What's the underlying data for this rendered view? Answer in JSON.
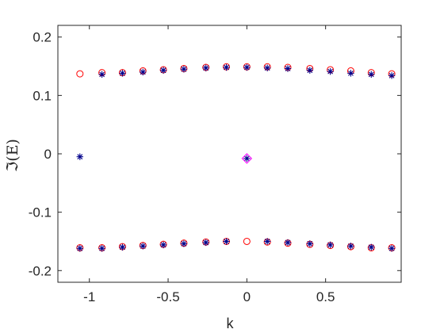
{
  "chart_data": {
    "type": "scatter",
    "xlabel": "k",
    "ylabel": "ℑ(E)",
    "xlim": [
      -1.2,
      0.98
    ],
    "ylim": [
      -0.22,
      0.22
    ],
    "x_ticks": [
      -1,
      -0.5,
      0,
      0.5
    ],
    "x_tick_labels": [
      "-1",
      "-0.5",
      "0",
      "0.5"
    ],
    "y_ticks": [
      -0.2,
      -0.1,
      0,
      0.1,
      0.2
    ],
    "y_tick_labels": [
      "-0.2",
      "-0.1",
      "0",
      "0.1",
      "0.2"
    ],
    "grid": false,
    "box": true,
    "series": [
      {
        "marker": "circle",
        "color": "#ff0000",
        "points": [
          [
            -1.06,
            0.137
          ],
          [
            -0.92,
            0.139
          ],
          [
            -0.79,
            0.139
          ],
          [
            -0.66,
            0.142
          ],
          [
            -0.53,
            0.144
          ],
          [
            -0.4,
            0.146
          ],
          [
            -0.26,
            0.148
          ],
          [
            -0.13,
            0.149
          ],
          [
            0.0,
            0.149
          ],
          [
            0.13,
            0.149
          ],
          [
            0.26,
            0.148
          ],
          [
            0.4,
            0.146
          ],
          [
            0.53,
            0.144
          ],
          [
            0.66,
            0.142
          ],
          [
            0.79,
            0.139
          ],
          [
            0.92,
            0.137
          ],
          [
            -1.06,
            -0.161
          ],
          [
            -0.92,
            -0.161
          ],
          [
            -0.79,
            -0.159
          ],
          [
            -0.66,
            -0.157
          ],
          [
            -0.53,
            -0.155
          ],
          [
            -0.4,
            -0.153
          ],
          [
            -0.26,
            -0.151
          ],
          [
            -0.13,
            -0.15
          ],
          [
            0.0,
            -0.15
          ],
          [
            0.13,
            -0.151
          ],
          [
            0.26,
            -0.153
          ],
          [
            0.4,
            -0.155
          ],
          [
            0.53,
            -0.157
          ],
          [
            0.66,
            -0.159
          ],
          [
            0.79,
            -0.161
          ],
          [
            0.92,
            -0.161
          ]
        ]
      },
      {
        "marker": "asterisk",
        "color": "#00008b",
        "points": [
          [
            -1.06,
            -0.005
          ],
          [
            0.0,
            -0.008
          ],
          [
            -0.92,
            0.136
          ],
          [
            -0.79,
            0.138
          ],
          [
            -0.66,
            0.14
          ],
          [
            -0.53,
            0.143
          ],
          [
            -0.4,
            0.145
          ],
          [
            -0.26,
            0.147
          ],
          [
            -0.13,
            0.148
          ],
          [
            0.0,
            0.148
          ],
          [
            0.13,
            0.147
          ],
          [
            0.26,
            0.146
          ],
          [
            0.4,
            0.143
          ],
          [
            0.53,
            0.141
          ],
          [
            0.66,
            0.138
          ],
          [
            0.79,
            0.136
          ],
          [
            0.92,
            0.134
          ],
          [
            -1.06,
            -0.162
          ],
          [
            -0.92,
            -0.162
          ],
          [
            -0.79,
            -0.16
          ],
          [
            -0.66,
            -0.158
          ],
          [
            -0.53,
            -0.156
          ],
          [
            -0.4,
            -0.154
          ],
          [
            -0.26,
            -0.152
          ],
          [
            -0.13,
            -0.15
          ],
          [
            0.13,
            -0.15
          ],
          [
            0.26,
            -0.152
          ],
          [
            0.4,
            -0.154
          ],
          [
            0.53,
            -0.156
          ],
          [
            0.66,
            -0.158
          ],
          [
            0.79,
            -0.16
          ],
          [
            0.92,
            -0.162
          ]
        ]
      },
      {
        "marker": "diamond",
        "color": "#ff00ff",
        "points": [
          [
            0.0,
            -0.008
          ]
        ]
      }
    ]
  }
}
